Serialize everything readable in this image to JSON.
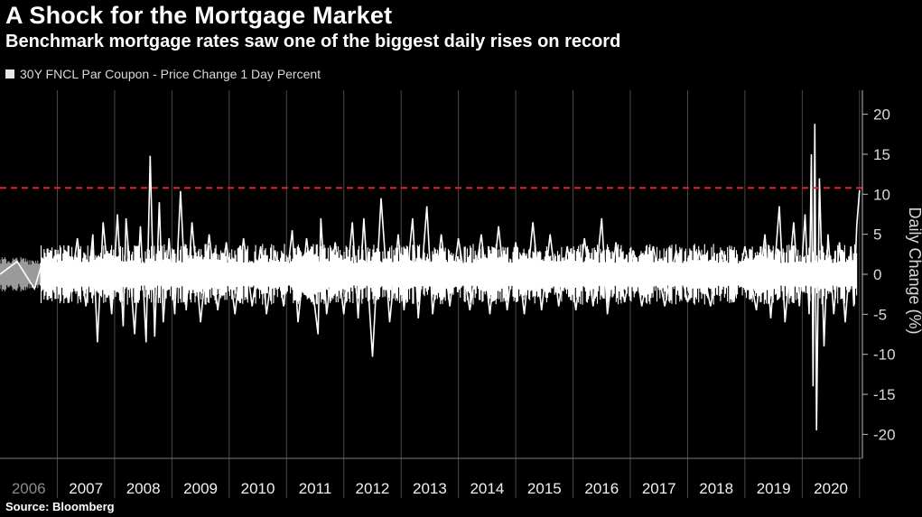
{
  "header": {
    "title": "A Shock for the Mortgage Market",
    "subtitle": "Benchmark mortgage rates saw one of the biggest daily rises on record"
  },
  "footer": {
    "source": "Source: Bloomberg"
  },
  "colors": {
    "background": "#000000",
    "series": "#ffffff",
    "grid": "#4a4a4a",
    "reference_line": "#e8202a",
    "axis_text": "#d9d9d9"
  },
  "chart_data": {
    "type": "line",
    "legend": {
      "position": "top-left",
      "entries": [
        "30Y FNCL Par Coupon - Price Change 1 Day Percent"
      ]
    },
    "ylabel": "Daily Change (%)",
    "xlabel": "",
    "ylim": [
      -23,
      23
    ],
    "yticks": [
      20,
      15,
      10,
      5,
      0,
      -5,
      -10,
      -15,
      -20
    ],
    "ytick_labels": [
      "20",
      "15",
      "10",
      "5",
      "0",
      "-5",
      "-10",
      "-15",
      "-20"
    ],
    "xlim": [
      2006.0,
      2021.05
    ],
    "x_categories": [
      "2006",
      "2007",
      "2008",
      "2009",
      "2010",
      "2011",
      "2012",
      "2013",
      "2014",
      "2015",
      "2016",
      "2017",
      "2018",
      "2019",
      "2020"
    ],
    "grid": {
      "vertical": true,
      "horizontal": false
    },
    "reference_line": {
      "y": 10.8,
      "style": "dashed"
    },
    "series": [
      {
        "name": "30Y FNCL Par Coupon - Price Change 1 Day Percent",
        "x": [
          2006.0,
          2006.3,
          2006.6,
          2006.75,
          2006.9,
          2007.0,
          2007.2,
          2007.35,
          2007.5,
          2007.62,
          2007.7,
          2007.8,
          2007.95,
          2008.05,
          2008.15,
          2008.2,
          2008.35,
          2008.45,
          2008.55,
          2008.62,
          2008.7,
          2008.78,
          2008.85,
          2008.95,
          2009.05,
          2009.15,
          2009.25,
          2009.35,
          2009.5,
          2009.65,
          2009.8,
          2009.95,
          2010.1,
          2010.25,
          2010.4,
          2010.55,
          2010.65,
          2010.8,
          2010.95,
          2011.1,
          2011.2,
          2011.35,
          2011.55,
          2011.6,
          2011.7,
          2011.85,
          2012.0,
          2012.15,
          2012.25,
          2012.35,
          2012.5,
          2012.65,
          2012.8,
          2012.95,
          2013.05,
          2013.2,
          2013.3,
          2013.45,
          2013.55,
          2013.7,
          2013.85,
          2014.0,
          2014.2,
          2014.4,
          2014.55,
          2014.7,
          2014.85,
          2015.0,
          2015.15,
          2015.3,
          2015.45,
          2015.6,
          2015.75,
          2015.9,
          2016.05,
          2016.2,
          2016.35,
          2016.5,
          2016.6,
          2016.75,
          2016.9,
          2017.05,
          2017.2,
          2017.4,
          2017.6,
          2017.8,
          2018.0,
          2018.2,
          2018.4,
          2018.6,
          2018.8,
          2019.0,
          2019.2,
          2019.35,
          2019.45,
          2019.6,
          2019.7,
          2019.85,
          2019.95,
          2020.05,
          2020.12,
          2020.16,
          2020.19,
          2020.22,
          2020.25,
          2020.3,
          2020.38,
          2020.45,
          2020.55,
          2020.65,
          2020.75,
          2020.85,
          2020.9,
          2020.95,
          2021.0
        ],
        "values": [
          0,
          1.6,
          -1.8,
          1.8,
          -2.0,
          2.5,
          -3.5,
          4.5,
          -4.0,
          5.0,
          -8.5,
          6.5,
          -5.0,
          7.5,
          -6.5,
          7.0,
          -7.5,
          6.0,
          -8.5,
          14.8,
          -7.8,
          9.0,
          -6.0,
          4.5,
          -5.0,
          10.4,
          -4.5,
          6.5,
          -6.0,
          5.0,
          -4.5,
          4.0,
          -5.0,
          4.5,
          -4.0,
          3.5,
          -5.0,
          3.0,
          -4.0,
          5.5,
          -6.0,
          4.5,
          -7.5,
          7.0,
          -5.0,
          4.0,
          -5.0,
          6.5,
          -5.5,
          7.0,
          -10.3,
          9.5,
          -6.0,
          5.0,
          -4.5,
          7.0,
          -5.5,
          8.5,
          -5.0,
          5.0,
          -4.0,
          4.5,
          -4.5,
          5.0,
          -5.0,
          6.0,
          -4.5,
          4.0,
          -5.0,
          6.5,
          -4.5,
          5.0,
          -4.0,
          3.5,
          -4.5,
          4.5,
          -4.0,
          7.0,
          -5.0,
          4.0,
          -3.5,
          3.0,
          -4.0,
          3.5,
          -4.0,
          3.0,
          -3.5,
          3.0,
          -4.0,
          3.0,
          -3.5,
          3.5,
          -4.5,
          5.0,
          -5.5,
          8.5,
          -6.0,
          6.5,
          -4.0,
          7.5,
          -5.0,
          15.0,
          -14.0,
          18.8,
          -19.5,
          12.0,
          -9.0,
          5.0,
          -5.0,
          4.0,
          -6.0,
          3.5,
          -4.0,
          6.0,
          10.5
        ]
      }
    ]
  }
}
